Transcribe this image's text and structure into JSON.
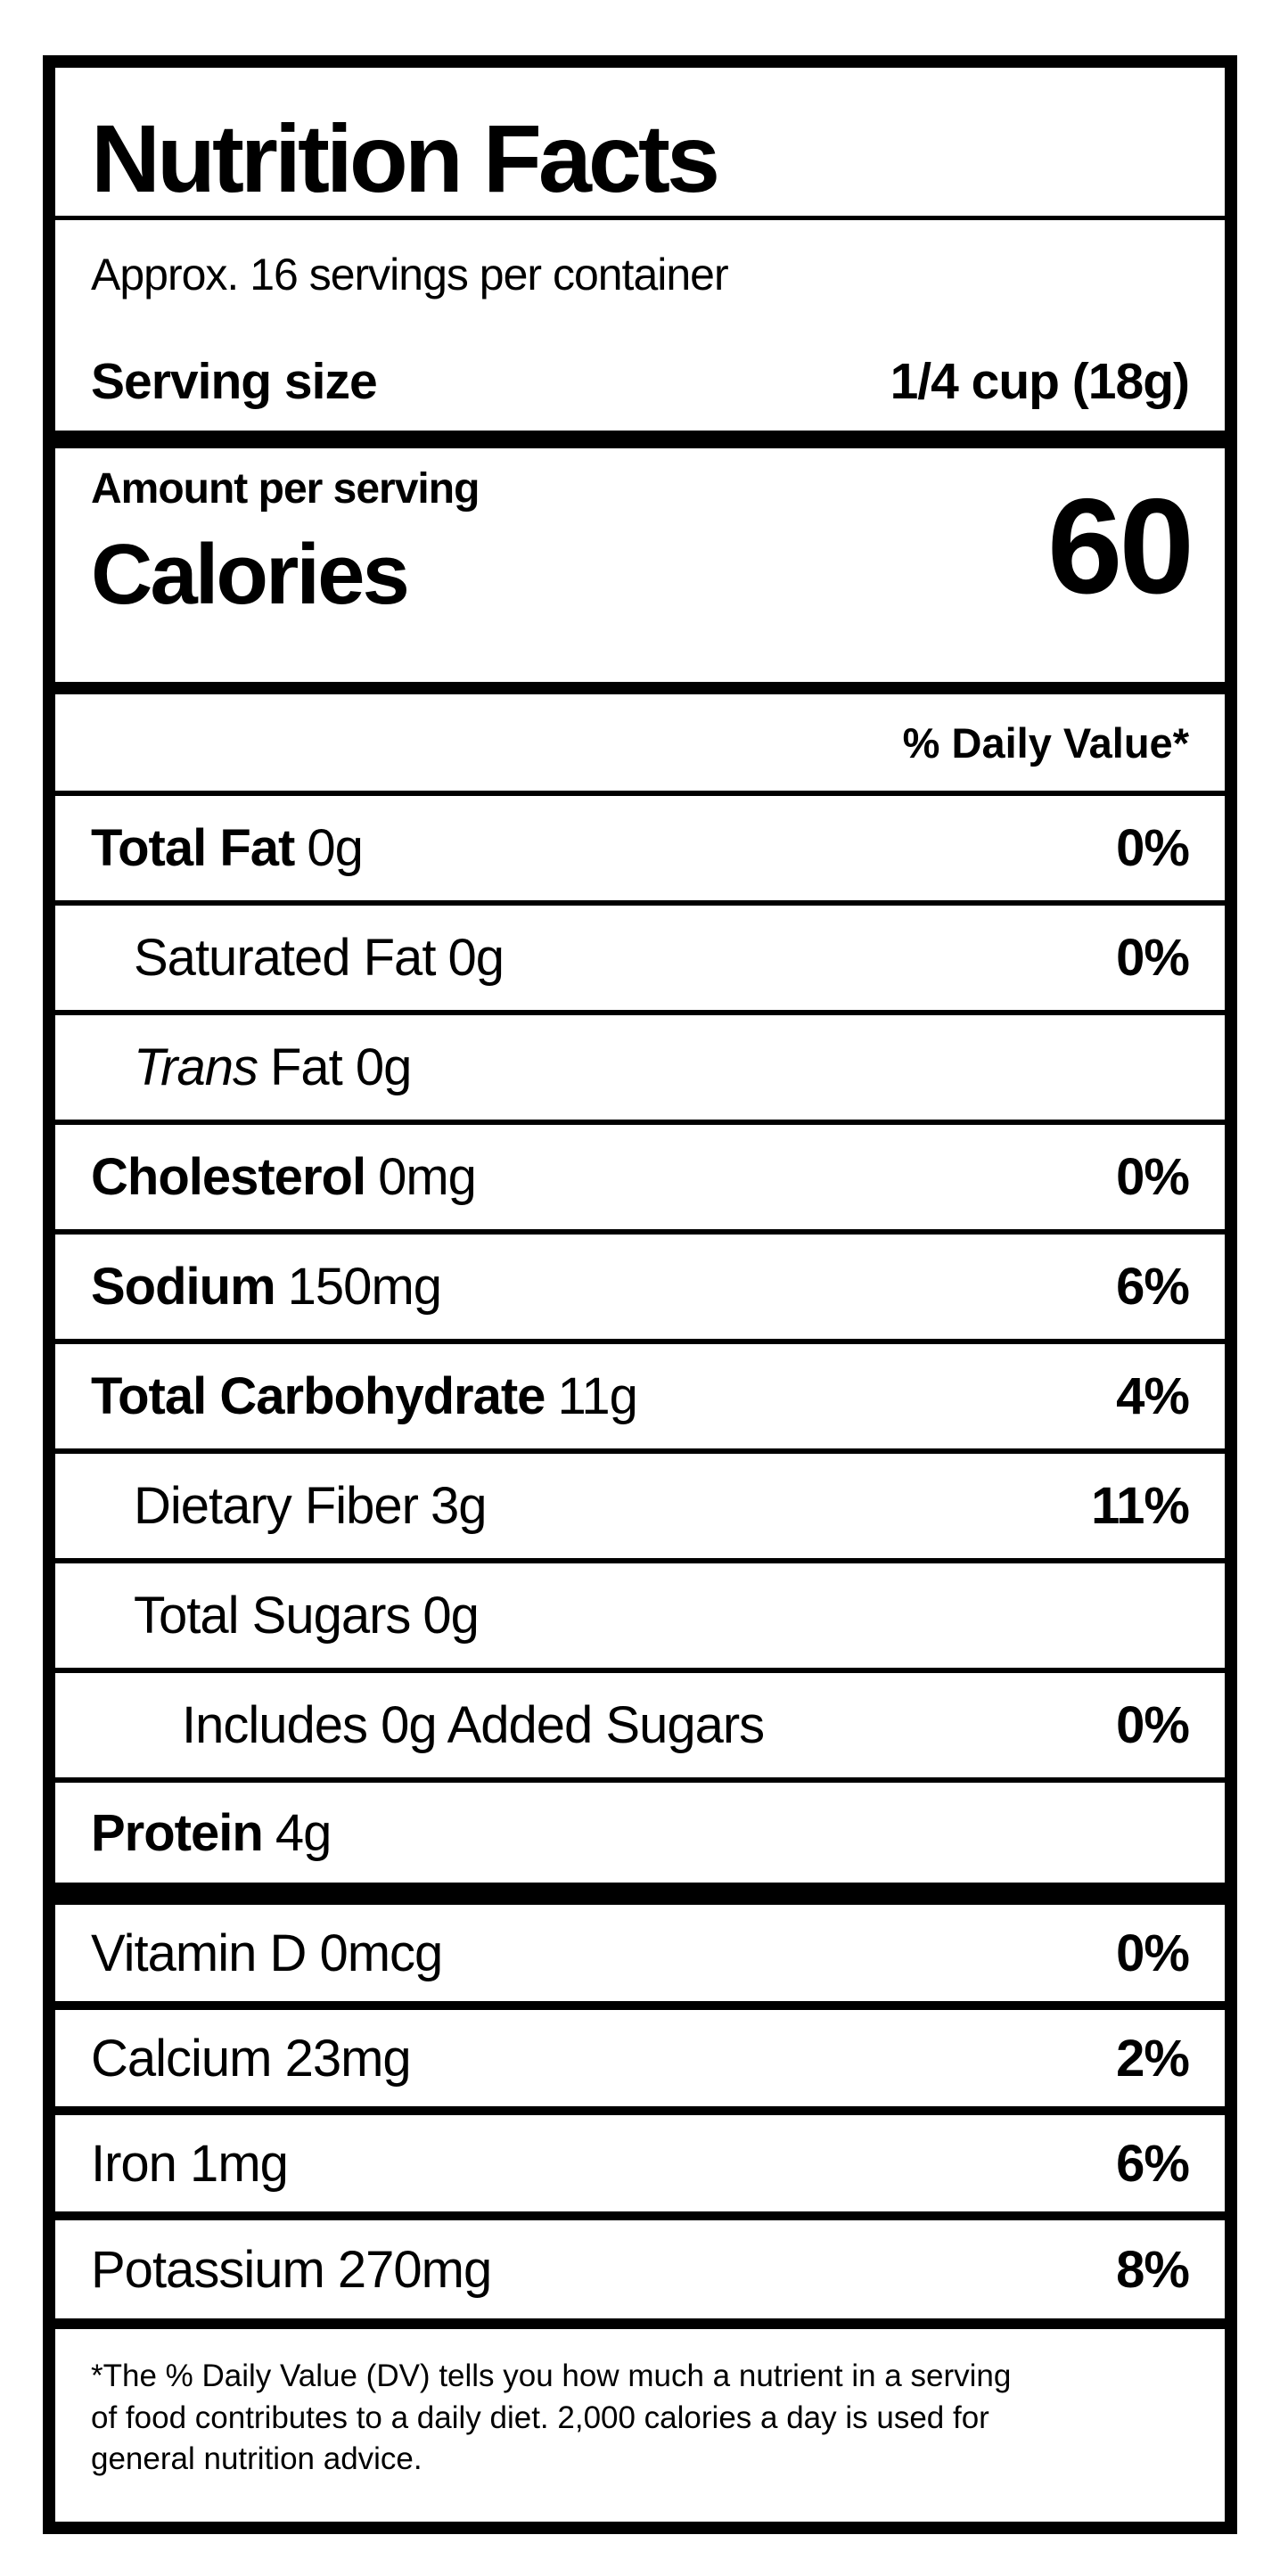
{
  "label": {
    "title": "Nutrition Facts",
    "servings_per_container": "Approx. 16 servings per container",
    "serving_size_label": "Serving size",
    "serving_size_value": "1/4 cup (18g)",
    "amount_per_serving": "Amount per serving",
    "calories_label": "Calories",
    "calories_value": "60",
    "daily_value_header": "% Daily Value*",
    "nutrients": [
      {
        "name": "Total Fat",
        "amount": "0g",
        "dv": "0%"
      },
      {
        "name": "Saturated Fat",
        "amount": "0g",
        "dv": "0%"
      },
      {
        "name": "Trans",
        "amount": "Fat 0g",
        "dv": ""
      },
      {
        "name": "Cholesterol",
        "amount": "0mg",
        "dv": "0%"
      },
      {
        "name": "Sodium",
        "amount": "150mg",
        "dv": "6%"
      },
      {
        "name": "Total Carbohydrate",
        "amount": "11g",
        "dv": "4%"
      },
      {
        "name": "Dietary Fiber",
        "amount": "3g",
        "dv": "11%"
      },
      {
        "name": "Total Sugars",
        "amount": "0g",
        "dv": ""
      },
      {
        "name": "Includes 0g Added Sugars",
        "amount": "",
        "dv": "0%"
      },
      {
        "name": "Protein",
        "amount": "4g",
        "dv": ""
      }
    ],
    "vitamins": [
      {
        "name": "Vitamin D 0mcg",
        "dv": "0%"
      },
      {
        "name": "Calcium 23mg",
        "dv": "2%"
      },
      {
        "name": "Iron 1mg",
        "dv": "6%"
      },
      {
        "name": "Potassium 270mg",
        "dv": "8%"
      }
    ],
    "footnote_lines": [
      "*The % Daily Value (DV) tells you how much a nutrient in a serving",
      "of food contributes to a daily diet. 2,000 calories a day is used for",
      "general nutrition advice."
    ],
    "colors": {
      "ink": "#000000",
      "background": "#ffffff"
    }
  }
}
